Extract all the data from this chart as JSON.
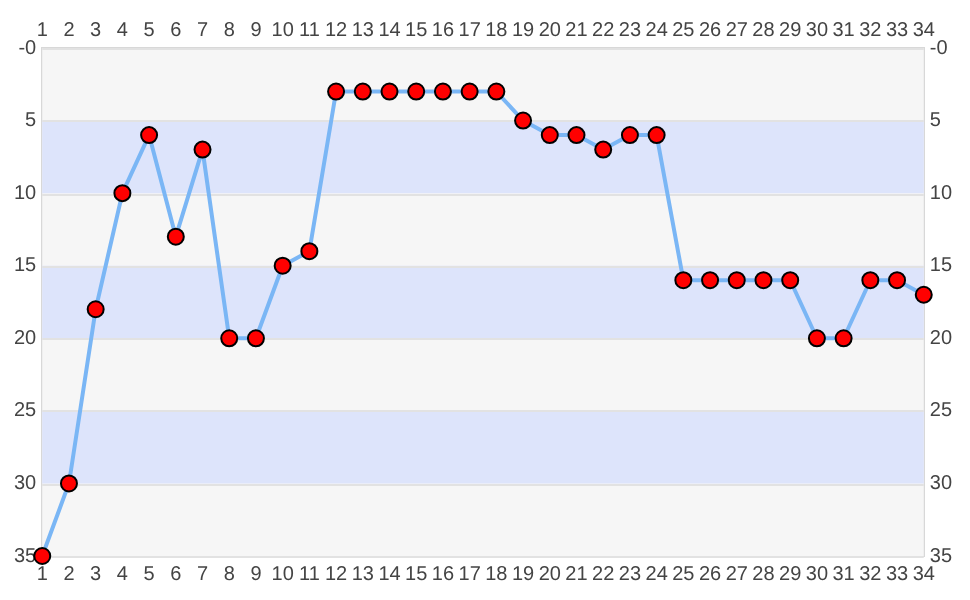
{
  "chart_data": {
    "type": "line",
    "x": [
      1,
      2,
      3,
      4,
      5,
      6,
      7,
      8,
      9,
      10,
      11,
      12,
      13,
      14,
      15,
      16,
      17,
      18,
      19,
      20,
      21,
      22,
      23,
      24,
      25,
      26,
      27,
      28,
      29,
      30,
      31,
      32,
      33,
      34
    ],
    "series": [
      {
        "color": "#7ab6f5",
        "values": [
          35,
          30,
          18,
          10,
          6,
          13,
          7,
          20,
          20,
          15,
          14,
          3,
          3,
          3,
          3,
          3,
          3,
          3,
          5,
          6,
          6,
          7,
          6,
          6,
          16,
          16,
          16,
          16,
          16,
          20,
          20,
          16,
          16,
          17
        ]
      }
    ],
    "xlim": [
      1,
      34
    ],
    "xticks": [
      1,
      2,
      3,
      4,
      5,
      6,
      7,
      8,
      9,
      10,
      11,
      12,
      13,
      14,
      15,
      16,
      17,
      18,
      19,
      20,
      21,
      22,
      23,
      24,
      25,
      26,
      27,
      28,
      29,
      30,
      31,
      32,
      33,
      34
    ],
    "x2lim": [
      1,
      34
    ],
    "x2ticks": [
      1,
      2,
      3,
      4,
      5,
      6,
      7,
      8,
      9,
      10,
      11,
      12,
      13,
      14,
      15,
      16,
      17,
      18,
      19,
      20,
      21,
      22,
      23,
      24,
      25,
      26,
      27,
      28,
      29,
      30,
      31,
      32,
      33,
      34
    ],
    "ylim": [
      35,
      0
    ],
    "yticks": [
      {
        "value": 0,
        "label": "-0"
      },
      5,
      10,
      15,
      20,
      25,
      30,
      35
    ],
    "y2lim": [
      35,
      0
    ],
    "y2ticks": [
      {
        "value": 0,
        "label": "-0"
      },
      5,
      10,
      15,
      20,
      25,
      30,
      35
    ],
    "bands": [
      {
        "axis": "y",
        "from": 5,
        "to": 10,
        "color": "#dde4fb"
      },
      {
        "axis": "y",
        "from": 15,
        "to": 20,
        "color": "#dde4fb"
      },
      {
        "axis": "y",
        "from": 25,
        "to": 30,
        "color": "#dde4fb"
      }
    ],
    "grid": "y",
    "legend": false,
    "marker": "circle",
    "line_style": "solid"
  }
}
